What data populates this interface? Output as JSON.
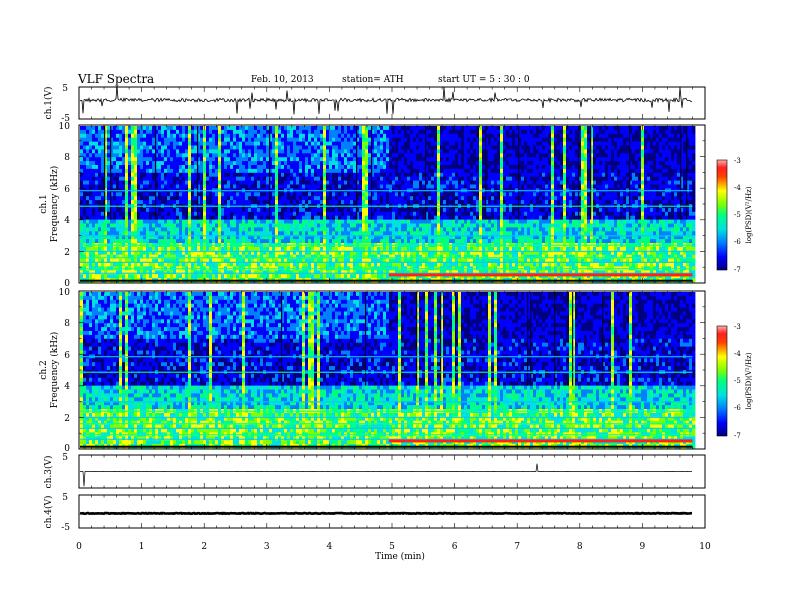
{
  "header": {
    "title": "VLF  Spectra",
    "date": "Feb. 10, 2013",
    "station": "station= ATH",
    "start": "start  UT  =   5  : 30 : 0"
  },
  "colors": {
    "spectrogram_scale": [
      "#000080",
      "#0000ff",
      "#0080ff",
      "#00e0e0",
      "#00ff80",
      "#80ff00",
      "#ffff00",
      "#ff8000",
      "#ff0000",
      "#ff9090"
    ],
    "waveform": "#000000"
  },
  "chart_data": [
    {
      "type": "line",
      "panel": "ch1-waveform",
      "ylabel": "ch.1(V)",
      "ylim": [
        -5,
        5
      ],
      "yticks": [
        "5",
        "-5"
      ],
      "xlim": [
        0,
        10
      ],
      "description_values": {
        "baseline_v": 1.0,
        "noise_amplitude_v": 0.8
      }
    },
    {
      "type": "heatmap",
      "panel": "ch1-spectrogram",
      "ylabel_channel": "ch.1",
      "ylabel": "Frequency  (kHz)",
      "ylim": [
        0,
        10
      ],
      "yticks": [
        "0",
        "2",
        "4",
        "6",
        "8",
        "10"
      ],
      "xlim": [
        0,
        9.8
      ],
      "colorbar": {
        "label": "log(PSD)(V²/Hz)",
        "range": [
          -7,
          -3
        ],
        "ticks": [
          "-3",
          "-4",
          "-5",
          "-6",
          "-7"
        ]
      },
      "step_change_min": 4.95,
      "strong_line_khz_after_step": 0.4
    },
    {
      "type": "heatmap",
      "panel": "ch2-spectrogram",
      "ylabel_channel": "ch.2",
      "ylabel": "Frequency  (kHz)",
      "ylim": [
        0,
        10
      ],
      "yticks": [
        "0",
        "2",
        "4",
        "6",
        "8",
        "10"
      ],
      "xlim": [
        0,
        9.8
      ],
      "colorbar": {
        "label": "log(PSD)(V²/Hz)",
        "range": [
          -7,
          -3
        ],
        "ticks": [
          "-3",
          "-4",
          "-5",
          "-6",
          "-7"
        ]
      },
      "step_change_min": 4.95,
      "strong_line_khz_after_step": 0.4
    },
    {
      "type": "line",
      "panel": "ch3-waveform",
      "ylabel": "ch.3(V)",
      "ylim": [
        -5,
        5
      ],
      "yticks": [
        "5"
      ],
      "xlim": [
        0,
        10
      ],
      "description_values": {
        "baseline_v": 0.0
      }
    },
    {
      "type": "line",
      "panel": "ch4-waveform",
      "ylabel": "ch.4(V)",
      "ylim": [
        -5,
        5
      ],
      "yticks": [
        "5",
        "-5"
      ],
      "xlim": [
        0,
        10
      ],
      "description_values": {
        "baseline_v": -0.6,
        "band_half_width_v": 0.12
      }
    }
  ],
  "xaxis": {
    "label": "Time  (min)",
    "ticks": [
      "0",
      "1",
      "2",
      "3",
      "4",
      "5",
      "6",
      "7",
      "8",
      "9",
      "10"
    ]
  }
}
